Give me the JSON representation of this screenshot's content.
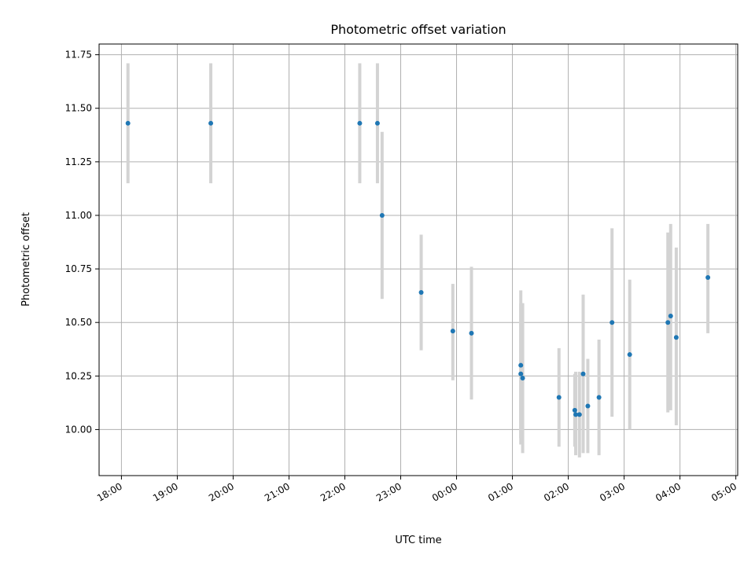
{
  "chart_data": {
    "type": "scatter",
    "title": "Photometric offset variation",
    "xlabel": "UTC time",
    "ylabel": "Photometric offset",
    "x_is_time": true,
    "xlim": [
      "2000-01-01T17:36",
      "2000-01-02T05:02"
    ],
    "ylim": [
      9.785,
      11.8
    ],
    "grid": true,
    "x_ticks": [
      {
        "t": "2000-01-01T18:00",
        "label": "18:00"
      },
      {
        "t": "2000-01-01T19:00",
        "label": "19:00"
      },
      {
        "t": "2000-01-01T20:00",
        "label": "20:00"
      },
      {
        "t": "2000-01-01T21:00",
        "label": "21:00"
      },
      {
        "t": "2000-01-01T22:00",
        "label": "22:00"
      },
      {
        "t": "2000-01-01T23:00",
        "label": "23:00"
      },
      {
        "t": "2000-01-02T00:00",
        "label": "00:00"
      },
      {
        "t": "2000-01-02T01:00",
        "label": "01:00"
      },
      {
        "t": "2000-01-02T02:00",
        "label": "02:00"
      },
      {
        "t": "2000-01-02T03:00",
        "label": "03:00"
      },
      {
        "t": "2000-01-02T04:00",
        "label": "04:00"
      },
      {
        "t": "2000-01-02T05:00",
        "label": "05:00"
      }
    ],
    "y_ticks": [
      {
        "v": 10.0,
        "label": "10.00"
      },
      {
        "v": 10.25,
        "label": "10.25"
      },
      {
        "v": 10.5,
        "label": "10.50"
      },
      {
        "v": 10.75,
        "label": "10.75"
      },
      {
        "v": 11.0,
        "label": "11.00"
      },
      {
        "v": 11.25,
        "label": "11.25"
      },
      {
        "v": 11.5,
        "label": "11.50"
      },
      {
        "v": 11.75,
        "label": "11.75"
      }
    ],
    "colors": {
      "point": "#1f77b4",
      "errorbar": "#d3d3d3"
    },
    "points": [
      {
        "t": "2000-01-01T18:07",
        "y": 11.43,
        "lo": 11.15,
        "hi": 11.71
      },
      {
        "t": "2000-01-01T19:36",
        "y": 11.43,
        "lo": 11.15,
        "hi": 11.71
      },
      {
        "t": "2000-01-01T22:16",
        "y": 11.43,
        "lo": 11.15,
        "hi": 11.71
      },
      {
        "t": "2000-01-01T22:35",
        "y": 11.43,
        "lo": 11.15,
        "hi": 11.71
      },
      {
        "t": "2000-01-01T22:40",
        "y": 11.0,
        "lo": 10.61,
        "hi": 11.39
      },
      {
        "t": "2000-01-01T23:22",
        "y": 10.64,
        "lo": 10.37,
        "hi": 10.91
      },
      {
        "t": "2000-01-01T23:56",
        "y": 10.46,
        "lo": 10.23,
        "hi": 10.68
      },
      {
        "t": "2000-01-02T00:16",
        "y": 10.45,
        "lo": 10.14,
        "hi": 10.76
      },
      {
        "t": "2000-01-02T01:09",
        "y": 10.3,
        "lo": 9.96,
        "hi": 10.65
      },
      {
        "t": "2000-01-02T01:09",
        "y": 10.26,
        "lo": 9.93,
        "hi": 10.59
      },
      {
        "t": "2000-01-02T01:11",
        "y": 10.24,
        "lo": 9.89,
        "hi": 10.59
      },
      {
        "t": "2000-01-02T01:50",
        "y": 10.15,
        "lo": 9.92,
        "hi": 10.38
      },
      {
        "t": "2000-01-02T02:07",
        "y": 10.09,
        "lo": 9.92,
        "hi": 10.26
      },
      {
        "t": "2000-01-02T02:08",
        "y": 10.07,
        "lo": 9.88,
        "hi": 10.27
      },
      {
        "t": "2000-01-02T02:12",
        "y": 10.07,
        "lo": 9.87,
        "hi": 10.27
      },
      {
        "t": "2000-01-02T02:16",
        "y": 10.26,
        "lo": 9.89,
        "hi": 10.63
      },
      {
        "t": "2000-01-02T02:21",
        "y": 10.11,
        "lo": 9.89,
        "hi": 10.33
      },
      {
        "t": "2000-01-02T02:33",
        "y": 10.15,
        "lo": 9.88,
        "hi": 10.42
      },
      {
        "t": "2000-01-02T02:47",
        "y": 10.5,
        "lo": 10.06,
        "hi": 10.94
      },
      {
        "t": "2000-01-02T03:06",
        "y": 10.35,
        "lo": 10.0,
        "hi": 10.7
      },
      {
        "t": "2000-01-02T03:47",
        "y": 10.5,
        "lo": 10.08,
        "hi": 10.92
      },
      {
        "t": "2000-01-02T03:50",
        "y": 10.53,
        "lo": 10.09,
        "hi": 10.96
      },
      {
        "t": "2000-01-02T03:56",
        "y": 10.43,
        "lo": 10.02,
        "hi": 10.85
      },
      {
        "t": "2000-01-02T04:30",
        "y": 10.71,
        "lo": 10.45,
        "hi": 10.96
      }
    ]
  }
}
